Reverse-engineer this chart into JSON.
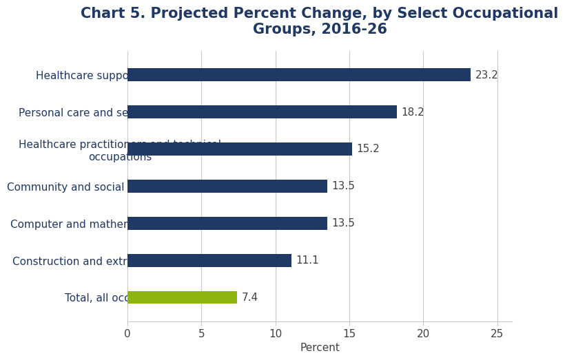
{
  "title": "Chart 5. Projected Percent Change, by Select Occupational\nGroups, 2016-26",
  "categories": [
    "Total, all occupations",
    "Construction and extraction occupations",
    "Computer and mathematical occupations",
    "Community and social service occupations",
    "Healthcare practitioners and technical\noccupations",
    "Personal care and service occupations",
    "Healthcare support occupations"
  ],
  "values": [
    7.4,
    11.1,
    13.5,
    13.5,
    15.2,
    18.2,
    23.2
  ],
  "bar_colors": [
    "#8db510",
    "#1f3864",
    "#1f3864",
    "#1f3864",
    "#1f3864",
    "#1f3864",
    "#1f3864"
  ],
  "xlabel": "Percent",
  "xlim": [
    0,
    26
  ],
  "xticks": [
    0,
    5,
    10,
    15,
    20,
    25
  ],
  "background_color": "#ffffff",
  "grid_color": "#c8c8c8",
  "title_color": "#1f3864",
  "label_color": "#1f3864",
  "value_label_color": "#404040",
  "title_fontsize": 15,
  "label_fontsize": 11,
  "value_fontsize": 11,
  "xlabel_fontsize": 11,
  "bar_height": 0.35
}
